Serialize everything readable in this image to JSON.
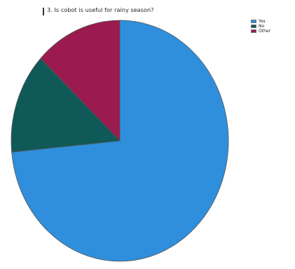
{
  "chart_data": {
    "type": "pie",
    "title": "3. Is cobot is useful for rainy season?",
    "categories": [
      "Yes",
      "No",
      "Other"
    ],
    "values": [
      73.5,
      13.5,
      13.0
    ],
    "unit": "percent",
    "colors": [
      "#2f8fdc",
      "#0f5a58",
      "#9b1a4f"
    ],
    "start_angle_deg": 0,
    "direction": "clockwise",
    "legend": {
      "position": "top-right",
      "items": [
        "Yes",
        "No",
        "Other"
      ]
    },
    "slice_border_color": "#555555"
  }
}
